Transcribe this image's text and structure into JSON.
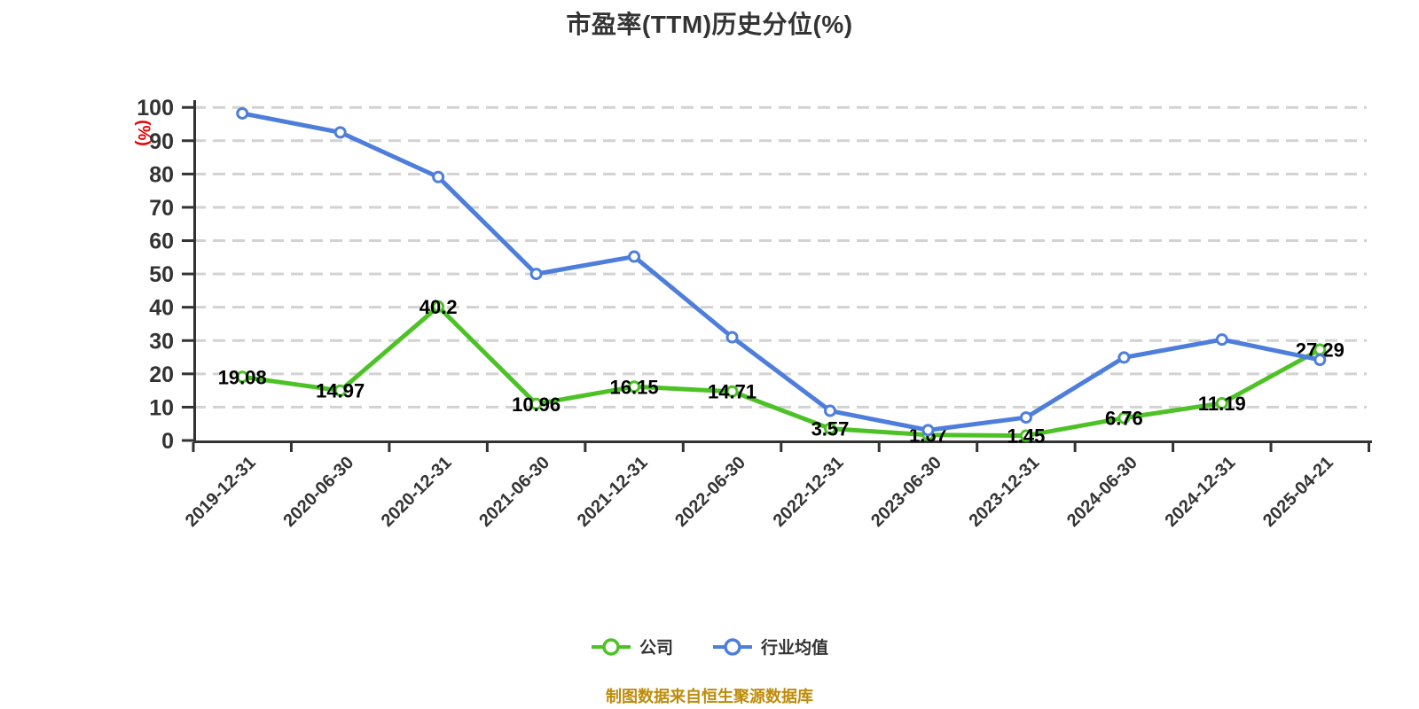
{
  "title": "市盈率(TTM)历史分位(%)",
  "footer_note": "制图数据来自恒生聚源数据库",
  "colors": {
    "company_series": "#4DC226",
    "industry_series": "#4E7EDC",
    "title_text": "#333333",
    "axis_line": "#333333",
    "axis_text": "#333333",
    "grid_line": "#d2d2d2",
    "data_label_text": "#000000",
    "y_unit_label": "#e60000",
    "footer_text": "#BE8C0A",
    "marker_fill": "#ffffff",
    "background": "#ffffff"
  },
  "y_axis": {
    "unit_label": "(%)",
    "tick_labels": [
      "0",
      "10",
      "20",
      "30",
      "40",
      "50",
      "60",
      "70",
      "80",
      "90",
      "100"
    ]
  },
  "legend": {
    "items": [
      {
        "label": "公司",
        "color": "#4DC226"
      },
      {
        "label": "行业均值",
        "color": "#4E7EDC"
      }
    ]
  },
  "chart_data": {
    "type": "line",
    "title": "市盈率(TTM)历史分位(%)",
    "ylabel": "(%)",
    "ylim": [
      0,
      100
    ],
    "y_ticks": [
      0,
      10,
      20,
      30,
      40,
      50,
      60,
      70,
      80,
      90,
      100
    ],
    "grid": "horizontal-dashed",
    "legend_position": "bottom",
    "categories": [
      "2019-12-31",
      "2020-06-30",
      "2020-12-31",
      "2021-06-30",
      "2021-12-31",
      "2022-06-30",
      "2022-12-31",
      "2023-06-30",
      "2023-12-31",
      "2024-06-30",
      "2024-12-31",
      "2025-04-21"
    ],
    "series": [
      {
        "name": "公司",
        "color": "#4DC226",
        "values": [
          19.08,
          14.97,
          40.2,
          10.96,
          16.15,
          14.71,
          3.57,
          1.67,
          1.45,
          6.76,
          11.19,
          27.29
        ],
        "data_labels": [
          "19.08",
          "14.97",
          "40.2",
          "10.96",
          "16.15",
          "14.71",
          "3.57",
          "1.67",
          "1.45",
          "6.76",
          "11.19",
          "27.29"
        ],
        "show_labels": true
      },
      {
        "name": "行业均值",
        "color": "#4E7EDC",
        "values": [
          98.2,
          92.5,
          79.1,
          50.0,
          55.2,
          31.0,
          8.9,
          3.1,
          6.9,
          24.9,
          30.3,
          24.2
        ],
        "show_labels": false,
        "values_estimated": true
      }
    ]
  }
}
